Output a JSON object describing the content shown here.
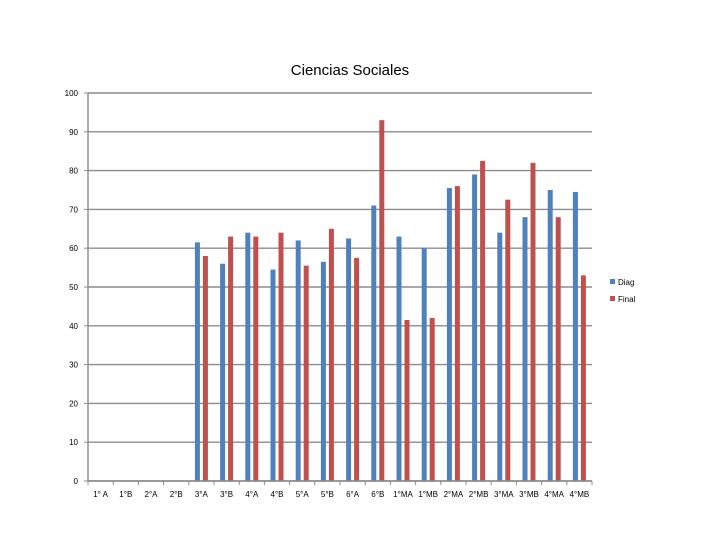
{
  "chart_data": {
    "type": "bar",
    "title": "Ciencias Sociales",
    "xlabel": "",
    "ylabel": "",
    "ylim": [
      0,
      100
    ],
    "yticks": [
      0,
      10,
      20,
      30,
      40,
      50,
      60,
      70,
      80,
      90,
      100
    ],
    "grid": true,
    "legend": "right",
    "categories": [
      "1° A",
      "1°B",
      "2°A",
      "2°B",
      "3°A",
      "3°B",
      "4°A",
      "4°B",
      "5°A",
      "5°B",
      "6°A",
      "6°B",
      "1°MA",
      "1°MB",
      "2°MA",
      "2°MB",
      "3°MA",
      "3°MB",
      "4°MA",
      "4°MB"
    ],
    "series": [
      {
        "name": "Diag",
        "color": "#4F81BD",
        "values": [
          null,
          null,
          null,
          null,
          61.5,
          56,
          64,
          54.5,
          62,
          56.5,
          62.5,
          71,
          63,
          60,
          75.5,
          79,
          64,
          68,
          75,
          74.5
        ]
      },
      {
        "name": "Final",
        "color": "#C0504D",
        "values": [
          null,
          null,
          null,
          null,
          58,
          63,
          63,
          64,
          55.5,
          65,
          57.5,
          93,
          41.5,
          42,
          76,
          82.5,
          72.5,
          82,
          68,
          53
        ]
      }
    ]
  }
}
